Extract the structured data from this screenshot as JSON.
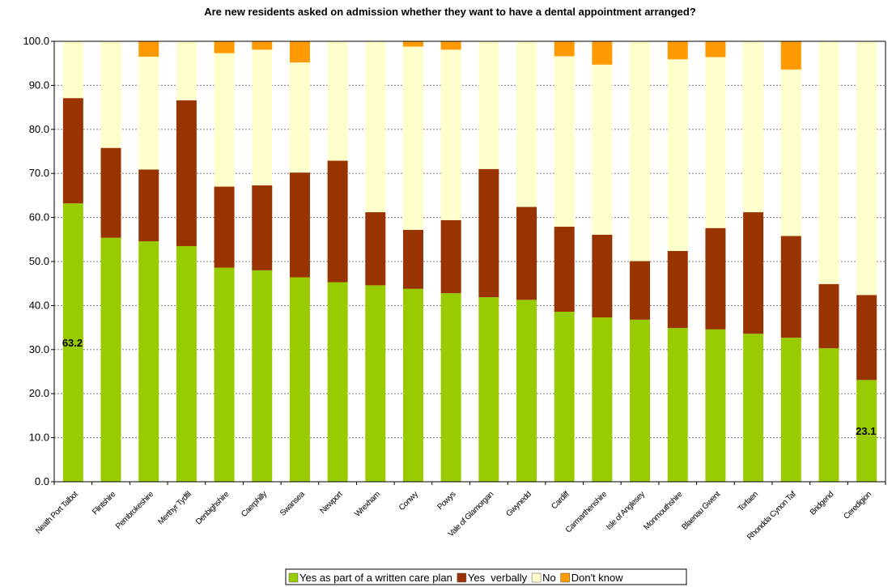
{
  "chart_data": {
    "type": "bar",
    "stacked": true,
    "title": "Are new residents asked on admission whether they want to have a dental appointment arranged?",
    "xlabel": "",
    "ylabel": "",
    "ylim": [
      0,
      100
    ],
    "yticks": [
      "0.0",
      "10.0",
      "20.0",
      "30.0",
      "40.0",
      "50.0",
      "60.0",
      "70.0",
      "80.0",
      "90.0",
      "100.0"
    ],
    "grid": true,
    "legend_position": "bottom",
    "categories": [
      "Neath Port Talbot",
      "Flintshire",
      "Pembrokeshire",
      "Merthyr Tydfil",
      "Denbighshire",
      "Caerphilly",
      "Swansea",
      "Newport",
      "Wrexham",
      "Conwy",
      "Powys",
      "Vale of Glamorgan",
      "Gwynedd",
      "Cardiff",
      "Carmarthenshire",
      "Isle of Anglesey",
      "Monmouthshire",
      "Blaenau Gwent",
      "Torfaen",
      "Rhondda Cynon Taf",
      "Bridgend",
      "Ceredigion"
    ],
    "series": [
      {
        "name": "Yes as part of a written care plan",
        "color": "#99cc00",
        "values": [
          63.2,
          55.4,
          54.6,
          53.5,
          48.6,
          48.0,
          46.4,
          45.3,
          44.6,
          43.8,
          42.8,
          41.9,
          41.3,
          38.6,
          37.3,
          36.8,
          34.9,
          34.6,
          33.6,
          32.7,
          30.3,
          23.1
        ]
      },
      {
        "name": "Yes  verbally",
        "color": "#993300",
        "values": [
          23.9,
          20.4,
          16.3,
          33.1,
          18.4,
          19.3,
          23.8,
          27.6,
          16.6,
          13.4,
          16.6,
          29.1,
          21.1,
          19.3,
          18.8,
          13.3,
          17.5,
          23.0,
          27.6,
          23.1,
          14.6,
          19.3
        ]
      },
      {
        "name": "No",
        "color": "#ffffcc",
        "values": [
          12.9,
          24.2,
          25.6,
          13.4,
          30.3,
          30.8,
          25.0,
          27.1,
          38.8,
          41.6,
          38.7,
          29.0,
          37.6,
          38.7,
          38.6,
          49.9,
          43.5,
          38.8,
          38.8,
          37.8,
          55.1,
          57.6
        ]
      },
      {
        "name": "Don't know",
        "color": "#ff9900",
        "values": [
          0,
          0,
          3.5,
          0,
          2.7,
          1.9,
          4.8,
          0,
          0,
          1.2,
          1.9,
          0,
          0,
          3.4,
          5.3,
          0,
          4.1,
          3.6,
          0,
          6.4,
          0,
          0
        ]
      }
    ],
    "data_labels": [
      {
        "category": "Neath Port Talbot",
        "value": "63.2"
      },
      {
        "category": "Ceredigion",
        "value": "23.1"
      }
    ]
  }
}
